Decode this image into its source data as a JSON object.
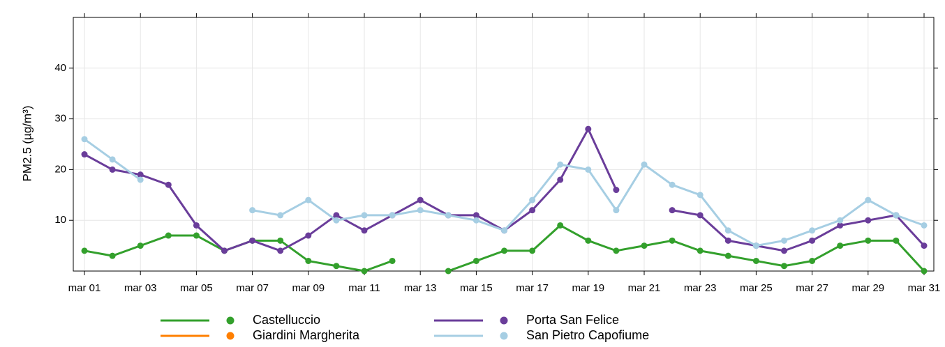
{
  "chart_data": {
    "type": "line",
    "y_label": "PM2.5 (µg/m³)",
    "x": [
      "mar 01",
      null,
      "mar 03",
      null,
      "mar 05",
      null,
      "mar 07",
      null,
      "mar 09",
      null,
      "mar 11",
      null,
      "mar 13",
      null,
      "mar 15",
      null,
      "mar 17",
      null,
      "mar 19",
      null,
      "mar 21",
      null,
      "mar 23",
      null,
      "mar 25",
      null,
      "mar 27",
      null,
      "mar 29",
      null,
      "mar 31"
    ],
    "ylim": [
      0,
      50
    ],
    "yticks": [
      10,
      20,
      30,
      40
    ],
    "grid": true,
    "series": [
      {
        "name": "Castelluccio",
        "color": "#33a02c",
        "values": [
          4,
          3,
          5,
          7,
          7,
          4,
          6,
          6,
          2,
          1,
          0,
          2,
          null,
          0,
          2,
          4,
          4,
          9,
          6,
          4,
          5,
          6,
          4,
          3,
          2,
          1,
          2,
          5,
          6,
          6,
          0
        ]
      },
      {
        "name": "Giardini Margherita",
        "color": "#ff7f00",
        "values": [
          null,
          null,
          null,
          null,
          null,
          null,
          null,
          null,
          null,
          null,
          null,
          null,
          null,
          null,
          null,
          null,
          null,
          null,
          null,
          null,
          null,
          null,
          null,
          null,
          null,
          null,
          null,
          null,
          null,
          null,
          null
        ]
      },
      {
        "name": "Porta San Felice",
        "color": "#6a3d9a",
        "values": [
          23,
          20,
          19,
          17,
          9,
          4,
          6,
          4,
          7,
          11,
          8,
          11,
          14,
          11,
          11,
          8,
          12,
          18,
          28,
          16,
          null,
          12,
          11,
          6,
          5,
          4,
          6,
          9,
          10,
          11,
          5
        ]
      },
      {
        "name": "San Pietro Capofiume",
        "color": "#a6cee3",
        "values": [
          26,
          22,
          18,
          null,
          null,
          null,
          12,
          11,
          14,
          10,
          11,
          11,
          12,
          11,
          10,
          8,
          14,
          21,
          20,
          12,
          21,
          17,
          15,
          8,
          5,
          6,
          8,
          10,
          14,
          11,
          9
        ]
      }
    ]
  }
}
